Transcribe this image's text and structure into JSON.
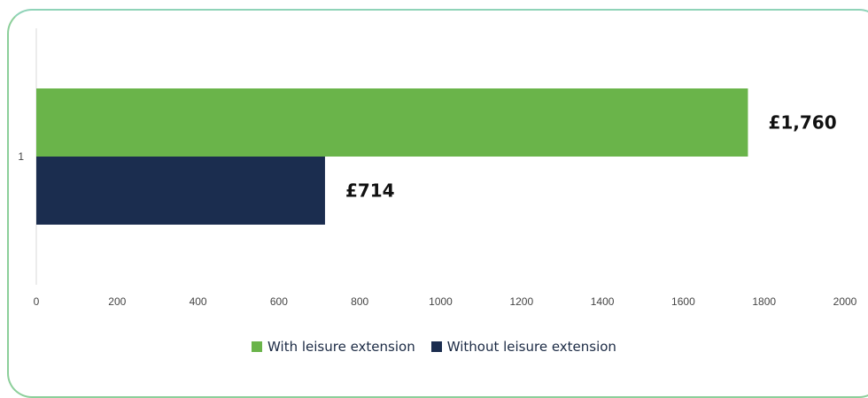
{
  "chart_data": {
    "type": "bar",
    "orientation": "horizontal",
    "categories": [
      "1"
    ],
    "series": [
      {
        "name": "With leisure extension",
        "values": [
          1760
        ],
        "label": "£1,760",
        "color": "#6ab44a"
      },
      {
        "name": "Without leisure extension",
        "values": [
          714
        ],
        "label": "£714",
        "color": "#1b2d4f"
      }
    ],
    "xlim": [
      0,
      2000
    ],
    "xticks": [
      0,
      200,
      400,
      600,
      800,
      1000,
      1200,
      1400,
      1600,
      1800,
      2000
    ],
    "grid": false,
    "legend_position": "bottom"
  }
}
